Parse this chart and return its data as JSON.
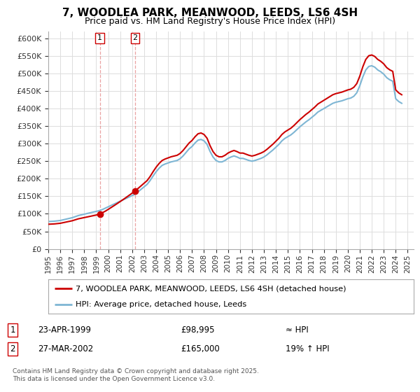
{
  "title": "7, WOODLEA PARK, MEANWOOD, LEEDS, LS6 4SH",
  "subtitle": "Price paid vs. HM Land Registry's House Price Index (HPI)",
  "xlim_start": 1995.0,
  "xlim_end": 2025.5,
  "ylim_min": 0,
  "ylim_max": 620000,
  "yticks": [
    0,
    50000,
    100000,
    150000,
    200000,
    250000,
    300000,
    350000,
    400000,
    450000,
    500000,
    550000,
    600000
  ],
  "ytick_labels": [
    "£0",
    "£50K",
    "£100K",
    "£150K",
    "£200K",
    "£250K",
    "£300K",
    "£350K",
    "£400K",
    "£450K",
    "£500K",
    "£550K",
    "£600K"
  ],
  "xticks": [
    1995,
    1996,
    1997,
    1998,
    1999,
    2000,
    2001,
    2002,
    2003,
    2004,
    2005,
    2006,
    2007,
    2008,
    2009,
    2010,
    2011,
    2012,
    2013,
    2014,
    2015,
    2016,
    2017,
    2018,
    2019,
    2020,
    2021,
    2022,
    2023,
    2024,
    2025
  ],
  "sale1_x": 1999.31,
  "sale1_y": 98995,
  "sale2_x": 2002.24,
  "sale2_y": 165000,
  "sale_color": "#cc0000",
  "hpi_color": "#7eb6d4",
  "legend_sale_label": "7, WOODLEA PARK, MEANWOOD, LEEDS, LS6 4SH (detached house)",
  "legend_hpi_label": "HPI: Average price, detached house, Leeds",
  "annotation1_date": "23-APR-1999",
  "annotation1_price": "£98,995",
  "annotation1_hpi": "≈ HPI",
  "annotation2_date": "27-MAR-2002",
  "annotation2_price": "£165,000",
  "annotation2_hpi": "19% ↑ HPI",
  "footnote": "Contains HM Land Registry data © Crown copyright and database right 2025.\nThis data is licensed under the Open Government Licence v3.0.",
  "background_color": "#ffffff",
  "grid_color": "#dddddd",
  "hpi_data_x": [
    1995.0,
    1995.25,
    1995.5,
    1995.75,
    1996.0,
    1996.25,
    1996.5,
    1996.75,
    1997.0,
    1997.25,
    1997.5,
    1997.75,
    1998.0,
    1998.25,
    1998.5,
    1998.75,
    1999.0,
    1999.25,
    1999.5,
    1999.75,
    2000.0,
    2000.25,
    2000.5,
    2000.75,
    2001.0,
    2001.25,
    2001.5,
    2001.75,
    2002.0,
    2002.25,
    2002.5,
    2002.75,
    2003.0,
    2003.25,
    2003.5,
    2003.75,
    2004.0,
    2004.25,
    2004.5,
    2004.75,
    2005.0,
    2005.25,
    2005.5,
    2005.75,
    2006.0,
    2006.25,
    2006.5,
    2006.75,
    2007.0,
    2007.25,
    2007.5,
    2007.75,
    2008.0,
    2008.25,
    2008.5,
    2008.75,
    2009.0,
    2009.25,
    2009.5,
    2009.75,
    2010.0,
    2010.25,
    2010.5,
    2010.75,
    2011.0,
    2011.25,
    2011.5,
    2011.75,
    2012.0,
    2012.25,
    2012.5,
    2012.75,
    2013.0,
    2013.25,
    2013.5,
    2013.75,
    2014.0,
    2014.25,
    2014.5,
    2014.75,
    2015.0,
    2015.25,
    2015.5,
    2015.75,
    2016.0,
    2016.25,
    2016.5,
    2016.75,
    2017.0,
    2017.25,
    2017.5,
    2017.75,
    2018.0,
    2018.25,
    2018.5,
    2018.75,
    2019.0,
    2019.25,
    2019.5,
    2019.75,
    2020.0,
    2020.25,
    2020.5,
    2020.75,
    2021.0,
    2021.25,
    2021.5,
    2021.75,
    2022.0,
    2022.25,
    2022.5,
    2022.75,
    2023.0,
    2023.25,
    2023.5,
    2023.75,
    2024.0,
    2024.25,
    2024.5
  ],
  "hpi_data_y": [
    78000,
    78500,
    79000,
    80000,
    81000,
    83000,
    85000,
    87000,
    89000,
    92000,
    95000,
    97000,
    99000,
    101000,
    103000,
    105000,
    107000,
    109000,
    112000,
    116000,
    120000,
    124000,
    128000,
    132000,
    136000,
    140000,
    144000,
    148000,
    152000,
    156000,
    163000,
    170000,
    177000,
    184000,
    195000,
    208000,
    220000,
    230000,
    238000,
    242000,
    245000,
    248000,
    250000,
    252000,
    257000,
    265000,
    275000,
    285000,
    292000,
    302000,
    310000,
    312000,
    308000,
    298000,
    278000,
    262000,
    252000,
    248000,
    248000,
    252000,
    258000,
    262000,
    265000,
    262000,
    258000,
    258000,
    255000,
    252000,
    250000,
    252000,
    255000,
    258000,
    262000,
    268000,
    275000,
    282000,
    290000,
    298000,
    308000,
    315000,
    320000,
    325000,
    332000,
    340000,
    348000,
    355000,
    362000,
    368000,
    375000,
    382000,
    390000,
    395000,
    400000,
    405000,
    410000,
    415000,
    418000,
    420000,
    422000,
    425000,
    428000,
    430000,
    435000,
    445000,
    465000,
    490000,
    510000,
    520000,
    522000,
    518000,
    510000,
    505000,
    498000,
    488000,
    482000,
    478000,
    428000,
    420000,
    415000
  ]
}
